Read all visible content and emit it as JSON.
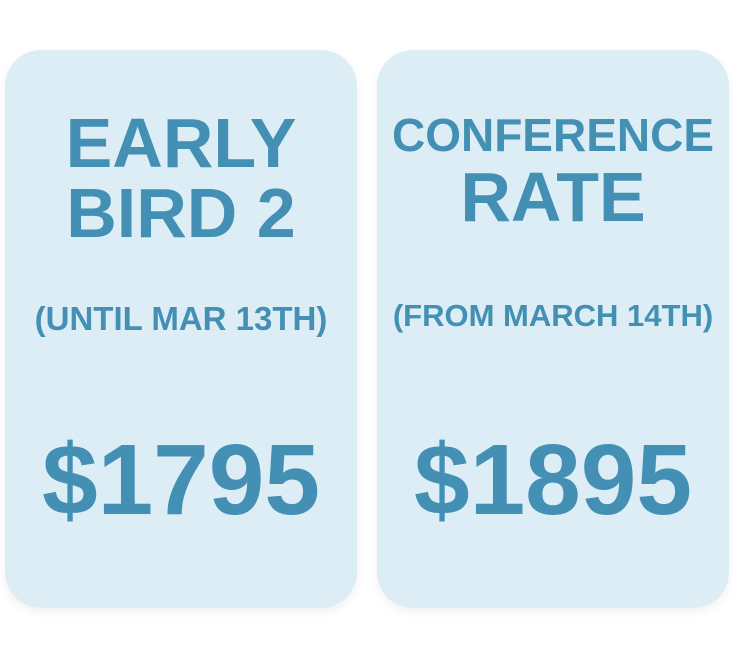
{
  "cards": [
    {
      "title_lines": [
        "EARLY",
        "BIRD 2"
      ],
      "subtitle": "(UNTIL MAR 13TH)",
      "price": "$1795"
    },
    {
      "title_lines": [
        "CONFERENCE",
        "RATE"
      ],
      "subtitle": "(FROM MARCH 14TH)",
      "price": "$1895"
    }
  ]
}
